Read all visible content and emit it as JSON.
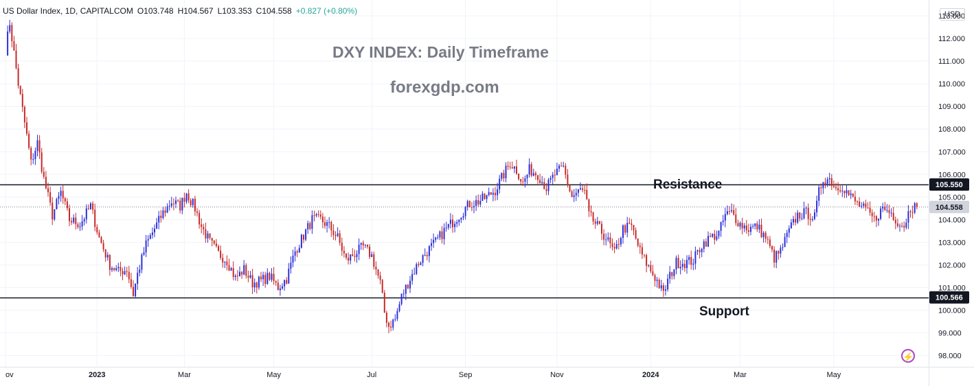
{
  "header": {
    "symbol": "US Dollar Index, 1D, CAPITALCOM",
    "open": "O103.748",
    "high": "H104.567",
    "low": "L103.353",
    "close": "C104.558",
    "change": "+0.827 (+0.80%)"
  },
  "currency": "USD",
  "annotations": {
    "title": "DXY INDEX: Daily Timeframe",
    "site": "forexgdp.com",
    "resistance": "Resistance",
    "support": "Support"
  },
  "colors": {
    "bull": "#2a2ed8",
    "bear": "#c62828",
    "level_line": "#131722",
    "grid": "#f0f3fa",
    "logo": "#ab47bc"
  },
  "chart_data": {
    "type": "candlestick",
    "title": "DXY INDEX: Daily Timeframe",
    "y_ticks": [
      "113.000",
      "112.000",
      "111.000",
      "110.000",
      "109.000",
      "108.000",
      "107.000",
      "106.000",
      "105.000",
      "104.000",
      "103.000",
      "102.000",
      "101.000",
      "100.000",
      "99.000",
      "98.000"
    ],
    "ylim": [
      97.5,
      113.7
    ],
    "x_ticks": [
      "ov",
      "2023",
      "Mar",
      "May",
      "Jul",
      "Sep",
      "Nov",
      "2024",
      "Mar",
      "May"
    ],
    "x_tick_positions": [
      0,
      43,
      84,
      126,
      172,
      216,
      259,
      303,
      345,
      389
    ],
    "total_bars": 428,
    "price_badges": [
      {
        "label": "105.550",
        "value": 105.55,
        "style": "dark"
      },
      {
        "label": "104.558",
        "value": 104.558,
        "style": "light"
      },
      {
        "label": "100.566",
        "value": 100.566,
        "style": "dark"
      }
    ],
    "levels": [
      {
        "name": "Resistance",
        "value": 105.55
      },
      {
        "name": "Support",
        "value": 100.566
      }
    ],
    "current_price": 104.558,
    "waypoints": [
      [
        0,
        111.5
      ],
      [
        2,
        112.7
      ],
      [
        6,
        110.0
      ],
      [
        10,
        107.7
      ],
      [
        12,
        106.5
      ],
      [
        15,
        107.4
      ],
      [
        18,
        105.8
      ],
      [
        22,
        104.2
      ],
      [
        26,
        105.2
      ],
      [
        30,
        104.0
      ],
      [
        35,
        103.8
      ],
      [
        40,
        104.6
      ],
      [
        44,
        103.2
      ],
      [
        49,
        102.0
      ],
      [
        53,
        101.7
      ],
      [
        57,
        101.8
      ],
      [
        60,
        100.7
      ],
      [
        62,
        101.6
      ],
      [
        66,
        102.9
      ],
      [
        70,
        103.6
      ],
      [
        74,
        104.3
      ],
      [
        78,
        104.8
      ],
      [
        82,
        104.6
      ],
      [
        85,
        105.2
      ],
      [
        89,
        104.5
      ],
      [
        92,
        103.7
      ],
      [
        96,
        103.0
      ],
      [
        100,
        102.5
      ],
      [
        104,
        102.2
      ],
      [
        108,
        101.4
      ],
      [
        112,
        101.8
      ],
      [
        116,
        101.2
      ],
      [
        120,
        101.3
      ],
      [
        124,
        101.5
      ],
      [
        128,
        101.0
      ],
      [
        132,
        101.4
      ],
      [
        136,
        102.6
      ],
      [
        140,
        103.3
      ],
      [
        144,
        104.0
      ],
      [
        148,
        104.0
      ],
      [
        152,
        103.7
      ],
      [
        156,
        103.2
      ],
      [
        160,
        102.2
      ],
      [
        164,
        102.5
      ],
      [
        168,
        102.8
      ],
      [
        172,
        102.4
      ],
      [
        176,
        101.2
      ],
      [
        178,
        99.9
      ],
      [
        180,
        99.3
      ],
      [
        183,
        99.6
      ],
      [
        186,
        100.6
      ],
      [
        190,
        101.4
      ],
      [
        194,
        102.1
      ],
      [
        198,
        102.6
      ],
      [
        202,
        103.0
      ],
      [
        206,
        103.5
      ],
      [
        210,
        103.9
      ],
      [
        214,
        104.3
      ],
      [
        218,
        104.7
      ],
      [
        222,
        104.8
      ],
      [
        226,
        105.0
      ],
      [
        230,
        105.3
      ],
      [
        234,
        106.0
      ],
      [
        237,
        106.5
      ],
      [
        240,
        106.2
      ],
      [
        243,
        105.6
      ],
      [
        246,
        106.2
      ],
      [
        250,
        106.0
      ],
      [
        254,
        105.4
      ],
      [
        258,
        106.0
      ],
      [
        262,
        106.3
      ],
      [
        264,
        105.6
      ],
      [
        266,
        105.0
      ],
      [
        270,
        105.3
      ],
      [
        272,
        105.2
      ],
      [
        274,
        104.2
      ],
      [
        278,
        103.7
      ],
      [
        282,
        103.2
      ],
      [
        286,
        102.5
      ],
      [
        290,
        103.6
      ],
      [
        294,
        103.7
      ],
      [
        298,
        102.6
      ],
      [
        302,
        101.9
      ],
      [
        306,
        101.3
      ],
      [
        309,
        100.7
      ],
      [
        311,
        101.3
      ],
      [
        315,
        102.1
      ],
      [
        319,
        102.1
      ],
      [
        323,
        102.2
      ],
      [
        327,
        102.9
      ],
      [
        331,
        103.2
      ],
      [
        335,
        103.4
      ],
      [
        338,
        104.2
      ],
      [
        341,
        104.3
      ],
      [
        345,
        103.8
      ],
      [
        349,
        103.6
      ],
      [
        353,
        103.7
      ],
      [
        357,
        103.2
      ],
      [
        361,
        102.3
      ],
      [
        364,
        102.6
      ],
      [
        368,
        103.5
      ],
      [
        372,
        104.2
      ],
      [
        376,
        104.3
      ],
      [
        380,
        104.1
      ],
      [
        382,
        105.2
      ],
      [
        384,
        105.8
      ],
      [
        387,
        105.8
      ],
      [
        390,
        105.4
      ],
      [
        393,
        105.5
      ],
      [
        396,
        105.1
      ],
      [
        400,
        104.7
      ],
      [
        404,
        104.4
      ],
      [
        408,
        104.0
      ],
      [
        412,
        104.5
      ],
      [
        416,
        104.3
      ],
      [
        420,
        103.8
      ],
      [
        423,
        103.8
      ],
      [
        424,
        104.558
      ]
    ]
  }
}
